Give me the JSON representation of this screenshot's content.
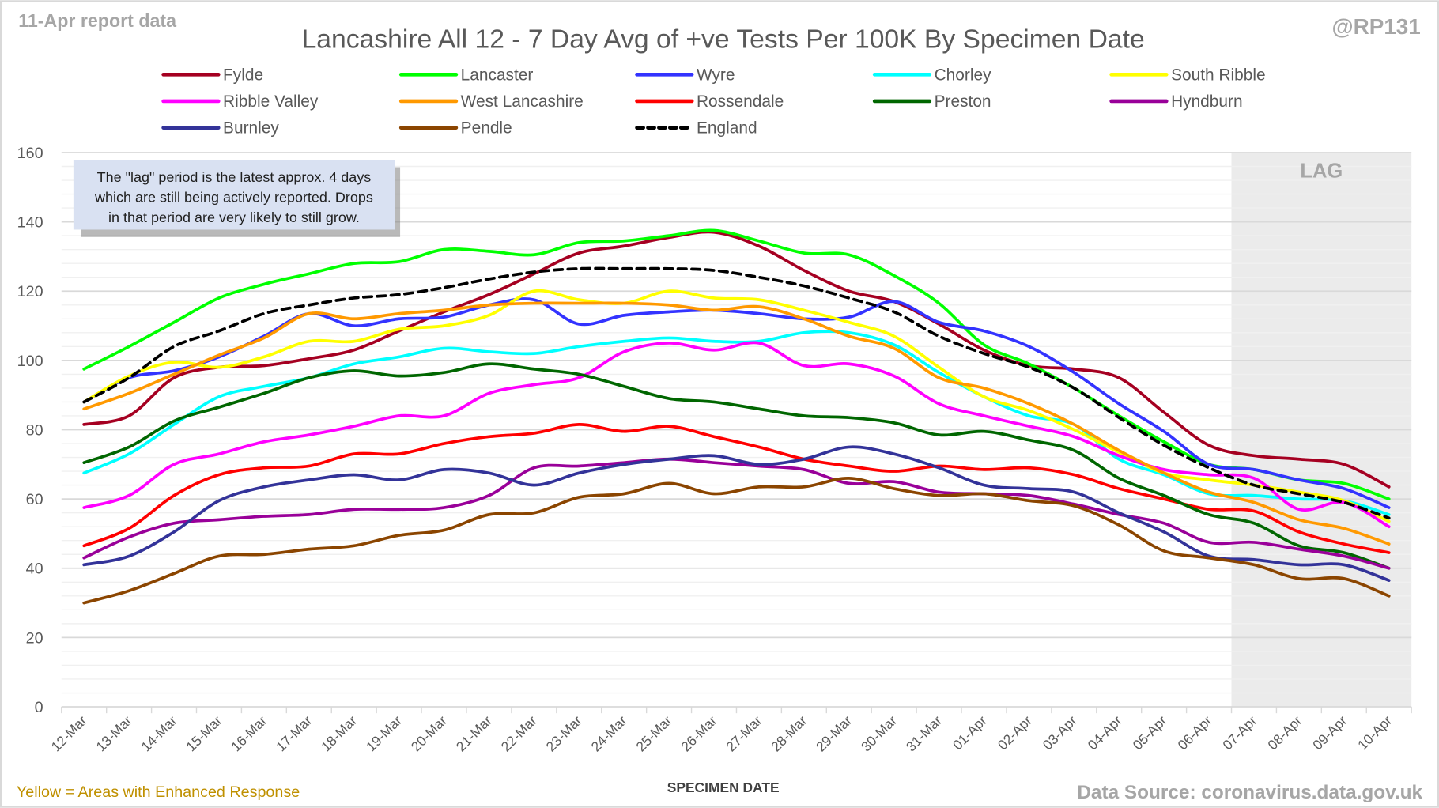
{
  "header": {
    "report_note": "11-Apr report data",
    "author": "@RP131"
  },
  "footer": {
    "enhanced_note": "Yellow = Areas with Enhanced Response",
    "source": "Data Source: coronavirus.data.gov.uk"
  },
  "annotation": {
    "lines": [
      "The \"lag\" period is the latest approx. 4 days",
      "which are still being actively reported.  Drops",
      "in that period are very likely to still grow."
    ],
    "lag_label": "LAG",
    "lag_start": "07-Apr",
    "lag_end": "10-Apr",
    "lag_shade_color": "#ebebeb",
    "box_color": "#d9e1f2"
  },
  "chart_data": {
    "type": "line",
    "title": "Lancashire All 12 - 7 Day Avg of +ve Tests Per 100K By Specimen Date",
    "xlabel": "SPECIMEN DATE",
    "ylabel": "",
    "ylim": [
      0,
      160
    ],
    "yticks": [
      0,
      20,
      40,
      60,
      80,
      100,
      120,
      140,
      160
    ],
    "grid": true,
    "legend_position": "top",
    "categories": [
      "12-Mar",
      "13-Mar",
      "14-Mar",
      "15-Mar",
      "16-Mar",
      "17-Mar",
      "18-Mar",
      "19-Mar",
      "20-Mar",
      "21-Mar",
      "22-Mar",
      "23-Mar",
      "24-Mar",
      "25-Mar",
      "26-Mar",
      "27-Mar",
      "28-Mar",
      "29-Mar",
      "30-Mar",
      "31-Mar",
      "01-Apr",
      "02-Apr",
      "03-Apr",
      "04-Apr",
      "05-Apr",
      "06-Apr",
      "07-Apr",
      "08-Apr",
      "09-Apr",
      "10-Apr"
    ],
    "series": [
      {
        "name": "Fylde",
        "color": "#a50021",
        "dashed": false,
        "values": [
          81.5,
          84,
          95,
          98,
          98.5,
          100.5,
          103,
          108.5,
          114,
          119,
          125,
          131,
          133,
          135.5,
          137,
          133,
          126,
          120,
          117,
          110.5,
          103,
          98.5,
          97.5,
          95,
          85,
          75.5,
          72.5,
          71.5,
          70,
          63.5
        ]
      },
      {
        "name": "Lancaster",
        "color": "#00ff00",
        "dashed": false,
        "values": [
          97.5,
          104,
          111,
          118,
          122,
          125,
          128,
          128.5,
          132,
          131.5,
          130.5,
          134,
          134.5,
          136,
          137.5,
          134.5,
          131,
          130.5,
          124.5,
          116.5,
          104.5,
          99,
          92,
          84,
          76.5,
          70,
          68.5,
          65.5,
          64.5,
          60
        ]
      },
      {
        "name": "Wyre",
        "color": "#3333ff",
        "dashed": false,
        "values": [
          88,
          95,
          97,
          101,
          107,
          113.5,
          110,
          112,
          112.5,
          116,
          117.5,
          110.5,
          113,
          114,
          114.5,
          113.5,
          112,
          112.5,
          117,
          111,
          108.5,
          104,
          96.5,
          87.5,
          79.5,
          70,
          68.5,
          65.5,
          63,
          57.5
        ]
      },
      {
        "name": "Chorley",
        "color": "#00ffff",
        "dashed": false,
        "values": [
          67.5,
          73,
          81.5,
          89.5,
          92.5,
          95,
          99,
          101,
          103.5,
          102.5,
          102,
          104,
          105.5,
          106.5,
          105.5,
          105.5,
          108,
          108,
          104.5,
          96.5,
          89.5,
          84,
          81.5,
          71.5,
          67,
          61.5,
          61,
          60,
          59.5,
          55.5
        ]
      },
      {
        "name": "South Ribble",
        "color": "#ffff00",
        "dashed": false,
        "values": [
          88,
          95.5,
          99.5,
          98,
          101,
          105.5,
          105.5,
          109,
          110,
          113,
          120,
          117.5,
          116.5,
          120,
          118,
          117.5,
          114.5,
          111,
          107,
          98,
          89.5,
          85.5,
          80,
          73.5,
          67.5,
          65.5,
          64,
          62,
          59.5,
          53.5
        ]
      },
      {
        "name": "Ribble Valley",
        "color": "#ff00ff",
        "dashed": false,
        "values": [
          57.5,
          61,
          70,
          73,
          76.5,
          78.5,
          81,
          84,
          84,
          90.5,
          93,
          95,
          102.5,
          105,
          103,
          105,
          98.5,
          99,
          95.5,
          87.5,
          84,
          81,
          78,
          72.5,
          68.5,
          67,
          66,
          57,
          59,
          52
        ]
      },
      {
        "name": "West Lancashire",
        "color": "#ff9900",
        "dashed": false,
        "values": [
          86,
          90.5,
          96,
          101.5,
          106.5,
          113.5,
          112,
          113.5,
          114.5,
          116,
          116.5,
          116.5,
          116.5,
          116,
          114.5,
          115.5,
          112,
          107,
          103.5,
          95,
          92,
          87.5,
          81.5,
          74,
          67.5,
          62,
          59,
          54,
          51.5,
          47
        ]
      },
      {
        "name": "Rossendale",
        "color": "#ff0000",
        "dashed": false,
        "values": [
          46.5,
          51.5,
          61,
          67,
          69,
          69.5,
          73,
          73,
          76,
          78,
          79,
          81.5,
          79.5,
          81,
          78,
          75,
          71.5,
          69.5,
          68,
          69.5,
          68.5,
          69,
          67,
          63,
          60,
          57,
          56.5,
          50.5,
          47,
          44.5
        ]
      },
      {
        "name": "Preston",
        "color": "#006600",
        "dashed": false,
        "values": [
          70.5,
          75,
          82.5,
          86.5,
          90.5,
          95,
          97,
          95.5,
          96.5,
          99,
          97.5,
          96,
          92.5,
          89,
          88,
          86,
          84,
          83.5,
          82,
          78.5,
          79.5,
          77,
          74,
          66,
          61,
          55.5,
          53,
          46.5,
          44.5,
          40
        ]
      },
      {
        "name": "Hyndburn",
        "color": "#990099",
        "dashed": false,
        "values": [
          43,
          49,
          53,
          54,
          55,
          55.5,
          57,
          57,
          57.5,
          61,
          69,
          69.5,
          70.5,
          71.5,
          70.5,
          69.5,
          68.5,
          64.5,
          65,
          62,
          61.5,
          61,
          58.5,
          55.5,
          53,
          47.5,
          47.5,
          45.5,
          43.5,
          40
        ]
      },
      {
        "name": "Burnley",
        "color": "#333399",
        "dashed": false,
        "values": [
          41,
          43.5,
          50.5,
          59.5,
          63.5,
          65.5,
          67,
          65.5,
          68.5,
          67.5,
          64,
          67.5,
          70,
          71.5,
          72.5,
          70,
          71.5,
          75,
          73,
          69,
          64,
          63,
          62,
          56,
          50.5,
          43.5,
          42.5,
          41,
          41,
          36.5
        ]
      },
      {
        "name": "Pendle",
        "color": "#8b4500",
        "dashed": false,
        "values": [
          30,
          33.5,
          38.5,
          43.5,
          44,
          45.5,
          46.5,
          49.5,
          51,
          55.5,
          56,
          60.5,
          61.5,
          64.5,
          61.5,
          63.5,
          63.5,
          66,
          63,
          61,
          61.5,
          59.5,
          58,
          52.5,
          45,
          43,
          41,
          37,
          37,
          32
        ]
      },
      {
        "name": "England",
        "color": "#000000",
        "dashed": true,
        "values": [
          88,
          95,
          104,
          108.5,
          113.5,
          116,
          118,
          119,
          121,
          123.5,
          125.5,
          126.5,
          126.5,
          126.5,
          126,
          124,
          121.5,
          118,
          114,
          107,
          102,
          98,
          92,
          83.5,
          75.5,
          69,
          64,
          61.5,
          59,
          54.5
        ]
      }
    ]
  }
}
